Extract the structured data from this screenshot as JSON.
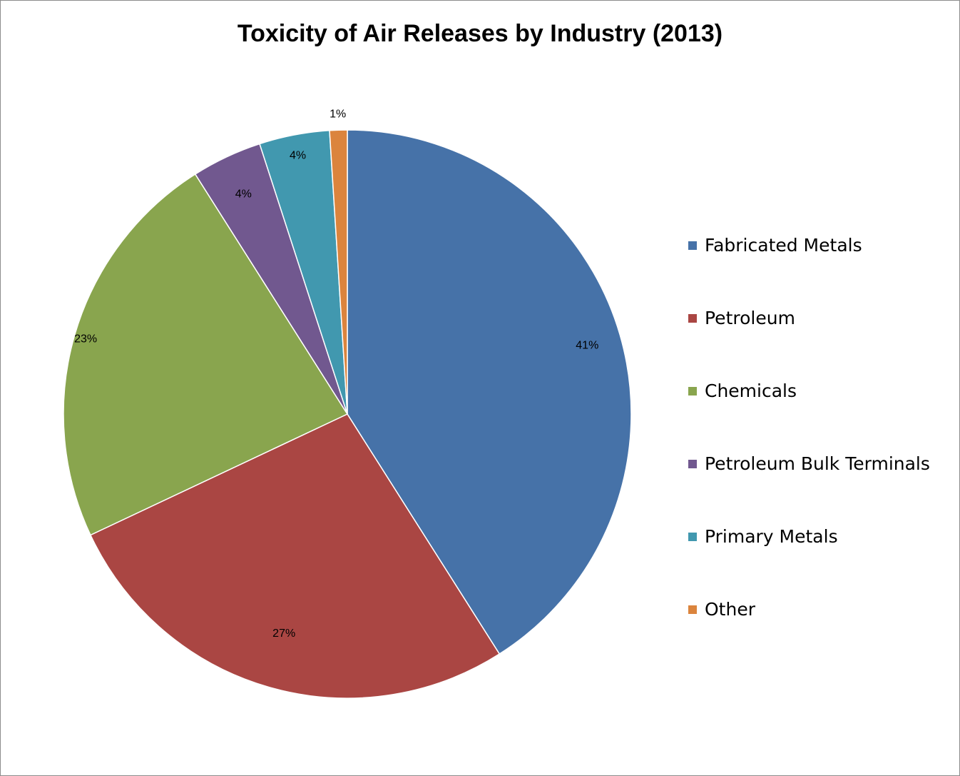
{
  "chart_data": {
    "type": "pie",
    "title": "Toxicity of Air Releases by Industry (2013)",
    "categories": [
      "Fabricated Metals",
      "Petroleum",
      "Chemicals",
      "Petroleum Bulk Terminals",
      "Primary Metals",
      "Other"
    ],
    "values": [
      41,
      27,
      23,
      4,
      4,
      1
    ],
    "data_labels": [
      "41%",
      "27%",
      "23%",
      "4%",
      "4%",
      "1%"
    ],
    "colors": [
      "#4672a8",
      "#aa4643",
      "#89a54e",
      "#71588f",
      "#4198af",
      "#db843d"
    ],
    "legend_position": "right",
    "start_angle": "12 o'clock, clockwise"
  }
}
